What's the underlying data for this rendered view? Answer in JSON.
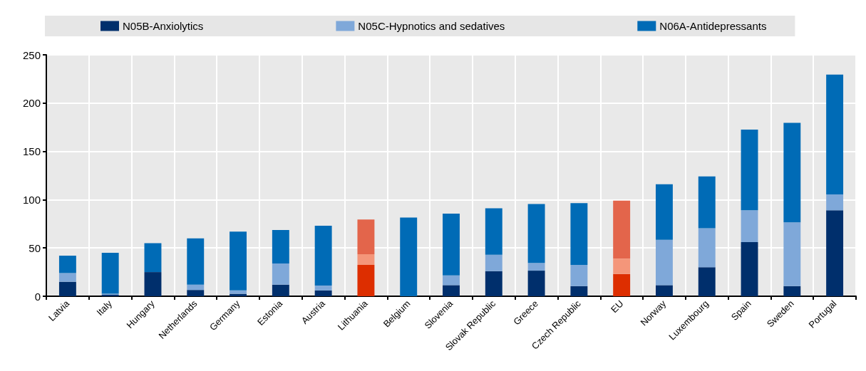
{
  "chart_data": {
    "type": "bar",
    "stacked": true,
    "legend": "top",
    "grid": true,
    "categories": [
      "Latvia",
      "Italy",
      "Hungary",
      "Netherlands",
      "Germany",
      "Estonia",
      "Austria",
      "Lithuania",
      "Belgium",
      "Slovenia",
      "Slovak Republic",
      "Greece",
      "Czech Republic",
      "EU",
      "Norway",
      "Luxembourg",
      "Spain",
      "Sweden",
      "Portugal"
    ],
    "ylim": [
      0,
      250
    ],
    "yticks": [
      0,
      50,
      100,
      150,
      200,
      250
    ],
    "series": [
      {
        "name": "N05B-Anxiolytics",
        "color": "#002f6c",
        "colors": [
          "#002f6c",
          "#002f6c",
          "#002f6c",
          "#002f6c",
          "#002f6c",
          "#002f6c",
          "#002f6c",
          "#dd2e00",
          "#002f6c",
          "#002f6c",
          "#002f6c",
          "#002f6c",
          "#002f6c",
          "#dd2e00",
          "#002f6c",
          "#002f6c",
          "#002f6c",
          "#002f6c",
          "#002f6c"
        ],
        "values": [
          15,
          1.5,
          25,
          6.5,
          2.5,
          12,
          6,
          32.5,
          0,
          11.5,
          26,
          26.5,
          10.5,
          23,
          11.5,
          30,
          56,
          10.5,
          89
        ]
      },
      {
        "name": "N05C-Hypnotics and sedatives",
        "color": "#7fa8d9",
        "colors": [
          "#7fa8d9",
          "#7fa8d9",
          "#7fa8d9",
          "#7fa8d9",
          "#7fa8d9",
          "#7fa8d9",
          "#7fa8d9",
          "#f4967a",
          "#7fa8d9",
          "#7fa8d9",
          "#7fa8d9",
          "#7fa8d9",
          "#7fa8d9",
          "#f4967a",
          "#7fa8d9",
          "#7fa8d9",
          "#7fa8d9",
          "#7fa8d9",
          "#7fa8d9"
        ],
        "values": [
          9,
          1,
          0,
          5.5,
          3.5,
          22,
          5,
          11,
          0,
          10,
          17,
          8,
          22,
          16,
          47,
          40.5,
          33,
          66,
          16.5
        ]
      },
      {
        "name": "N06A-Antidepressants",
        "color": "#006bb6",
        "colors": [
          "#006bb6",
          "#006bb6",
          "#006bb6",
          "#006bb6",
          "#006bb6",
          "#006bb6",
          "#006bb6",
          "#e3654b",
          "#006bb6",
          "#006bb6",
          "#006bb6",
          "#006bb6",
          "#006bb6",
          "#e3654b",
          "#006bb6",
          "#006bb6",
          "#006bb6",
          "#006bb6",
          "#006bb6"
        ],
        "values": [
          18,
          42.5,
          30,
          48,
          61,
          34.5,
          62,
          36,
          81.5,
          64,
          48,
          61,
          64,
          60,
          57.5,
          53.5,
          83.5,
          103,
          124
        ]
      }
    ]
  }
}
